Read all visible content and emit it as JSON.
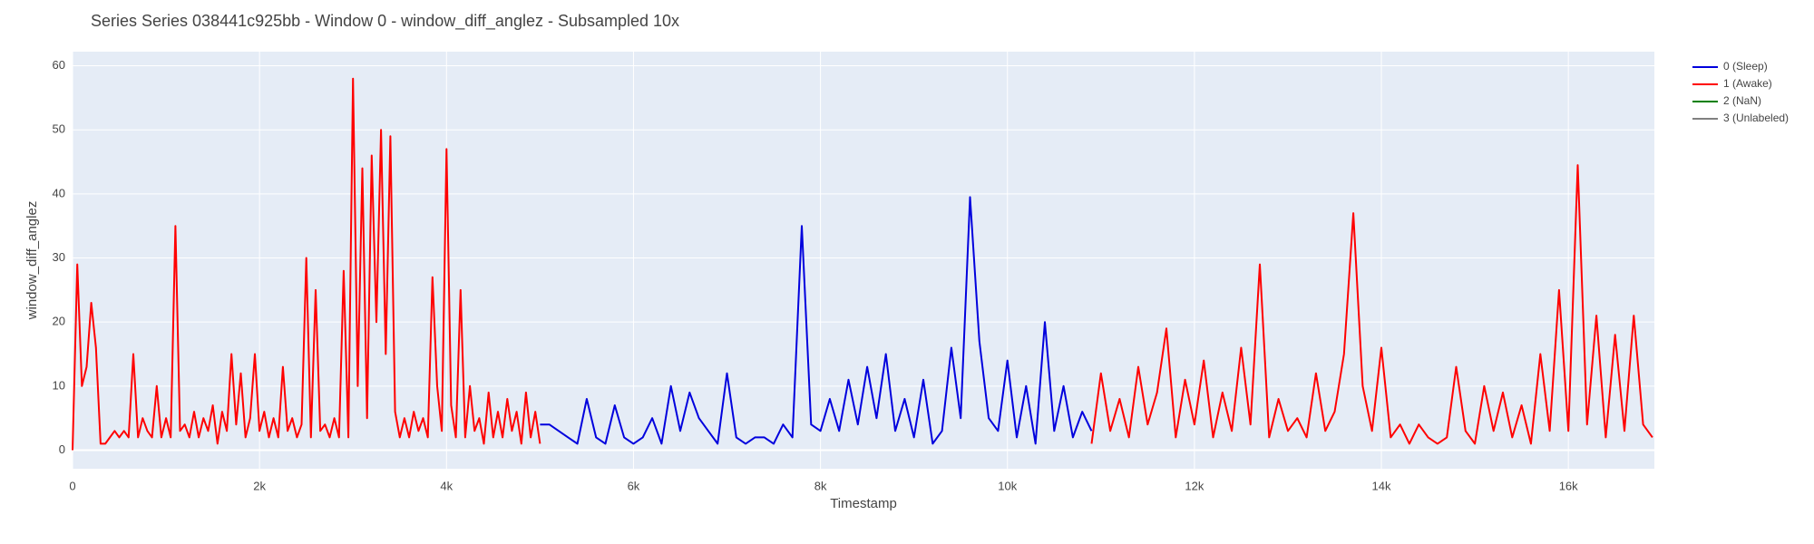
{
  "chart_data": {
    "type": "line",
    "title": "Series Series 038441c925bb - Window 0 - window_diff_anglez - Subsampled 10x",
    "x_label": "Timestamp",
    "y_label": "window_diff_anglez",
    "xlim": [
      0,
      16920
    ],
    "ylim": [
      -2.9,
      62.2
    ],
    "xticks": [
      0,
      {
        "value": 2000,
        "label": "2k"
      },
      {
        "value": 4000,
        "label": "4k"
      },
      {
        "value": 6000,
        "label": "6k"
      },
      {
        "value": 8000,
        "label": "8k"
      },
      {
        "value": 10000,
        "label": "10k"
      },
      {
        "value": 12000,
        "label": "12k"
      },
      {
        "value": 14000,
        "label": "14k"
      },
      {
        "value": 16000,
        "label": "16k"
      }
    ],
    "yticks": [
      0,
      10,
      20,
      30,
      40,
      50,
      60
    ],
    "grid": true,
    "legend_position": "right",
    "series": [
      {
        "name": "0 (Sleep)",
        "color": "#0000dd",
        "x": [
          5000,
          5100,
          5200,
          5300,
          5400,
          5500,
          5600,
          5700,
          5800,
          5900,
          6000,
          6100,
          6200,
          6300,
          6400,
          6500,
          6600,
          6700,
          6800,
          6900,
          7000,
          7100,
          7200,
          7300,
          7400,
          7500,
          7600,
          7700,
          7800,
          7900,
          8000,
          8100,
          8200,
          8300,
          8400,
          8500,
          8600,
          8700,
          8800,
          8900,
          9000,
          9100,
          9200,
          9300,
          9400,
          9500,
          9600,
          9700,
          9800,
          9900,
          10000,
          10100,
          10200,
          10300,
          10400,
          10500,
          10600,
          10700,
          10800,
          10900
        ],
        "values": [
          4,
          4,
          3,
          2,
          1,
          8,
          2,
          1,
          7,
          2,
          1,
          2,
          5,
          1,
          10,
          3,
          9,
          5,
          3,
          1,
          12,
          2,
          1,
          2,
          2,
          1,
          4,
          2,
          35,
          4,
          3,
          8,
          3,
          11,
          4,
          13,
          5,
          15,
          3,
          8,
          2,
          11,
          1,
          3,
          16,
          5,
          39.5,
          17,
          5,
          3,
          14,
          2,
          10,
          1,
          20,
          3,
          10,
          2,
          6,
          3
        ]
      },
      {
        "name": "1 (Awake)",
        "color": "#ff0000",
        "x": [
          0,
          50,
          100,
          150,
          200,
          250,
          300,
          350,
          400,
          450,
          500,
          550,
          600,
          650,
          700,
          750,
          800,
          850,
          900,
          950,
          1000,
          1050,
          1100,
          1150,
          1200,
          1250,
          1300,
          1350,
          1400,
          1450,
          1500,
          1550,
          1600,
          1650,
          1700,
          1750,
          1800,
          1850,
          1900,
          1950,
          2000,
          2050,
          2100,
          2150,
          2200,
          2250,
          2300,
          2350,
          2400,
          2450,
          2500,
          2550,
          2600,
          2650,
          2700,
          2750,
          2800,
          2850,
          2900,
          2950,
          3000,
          3050,
          3100,
          3150,
          3200,
          3250,
          3300,
          3350,
          3400,
          3450,
          3500,
          3550,
          3600,
          3650,
          3700,
          3750,
          3800,
          3850,
          3900,
          3950,
          4000,
          4050,
          4100,
          4150,
          4200,
          4250,
          4300,
          4350,
          4400,
          4450,
          4500,
          4550,
          4600,
          4650,
          4700,
          4750,
          4800,
          4850,
          4900,
          4950,
          5000,
          5050,
          10900,
          11000,
          11100,
          11200,
          11300,
          11400,
          11500,
          11600,
          11700,
          11800,
          11900,
          12000,
          12100,
          12200,
          12300,
          12400,
          12500,
          12600,
          12700,
          12800,
          12900,
          13000,
          13100,
          13200,
          13300,
          13400,
          13500,
          13600,
          13700,
          13800,
          13900,
          14000,
          14100,
          14200,
          14300,
          14400,
          14500,
          14600,
          14700,
          14800,
          14900,
          15000,
          15100,
          15200,
          15300,
          15400,
          15500,
          15600,
          15700,
          15800,
          15900,
          16000,
          16100,
          16200,
          16300,
          16400,
          16500,
          16600,
          16700,
          16800,
          16900
        ],
        "values": [
          0,
          29,
          10,
          13,
          23,
          16,
          1,
          1,
          2,
          3,
          2,
          3,
          2,
          15,
          2,
          5,
          3,
          2,
          10,
          2,
          5,
          2,
          35,
          3,
          4,
          2,
          6,
          2,
          5,
          3,
          7,
          1,
          6,
          3,
          15,
          4,
          12,
          2,
          5,
          15,
          3,
          6,
          2,
          5,
          2,
          13,
          3,
          5,
          2,
          4,
          30,
          2,
          25,
          3,
          4,
          2,
          5,
          2,
          28,
          2,
          58,
          10,
          44,
          5,
          46,
          20,
          50,
          15,
          49,
          6,
          2,
          5,
          2,
          6,
          3,
          5,
          2,
          27,
          10,
          3,
          47,
          7,
          2,
          25,
          2,
          10,
          3,
          5,
          1,
          9,
          2,
          6,
          2,
          8,
          3,
          6,
          1,
          9,
          2,
          6,
          1,
          null,
          1,
          12,
          3,
          8,
          2,
          13,
          4,
          9,
          19,
          2,
          11,
          4,
          14,
          2,
          9,
          3,
          16,
          4,
          29,
          2,
          8,
          3,
          5,
          2,
          12,
          3,
          6,
          15,
          37,
          10,
          3,
          16,
          2,
          4,
          1,
          4,
          2,
          1,
          2,
          13,
          3,
          1,
          10,
          3,
          9,
          2,
          7,
          1,
          15,
          3,
          25,
          3,
          44.5,
          4,
          21,
          2,
          18,
          3,
          21,
          4,
          2
        ]
      },
      {
        "name": "2 (NaN)",
        "color": "#008000",
        "x": [],
        "values": []
      },
      {
        "name": "3 (Unlabeled)",
        "color": "#808080",
        "x": [],
        "values": []
      }
    ]
  }
}
